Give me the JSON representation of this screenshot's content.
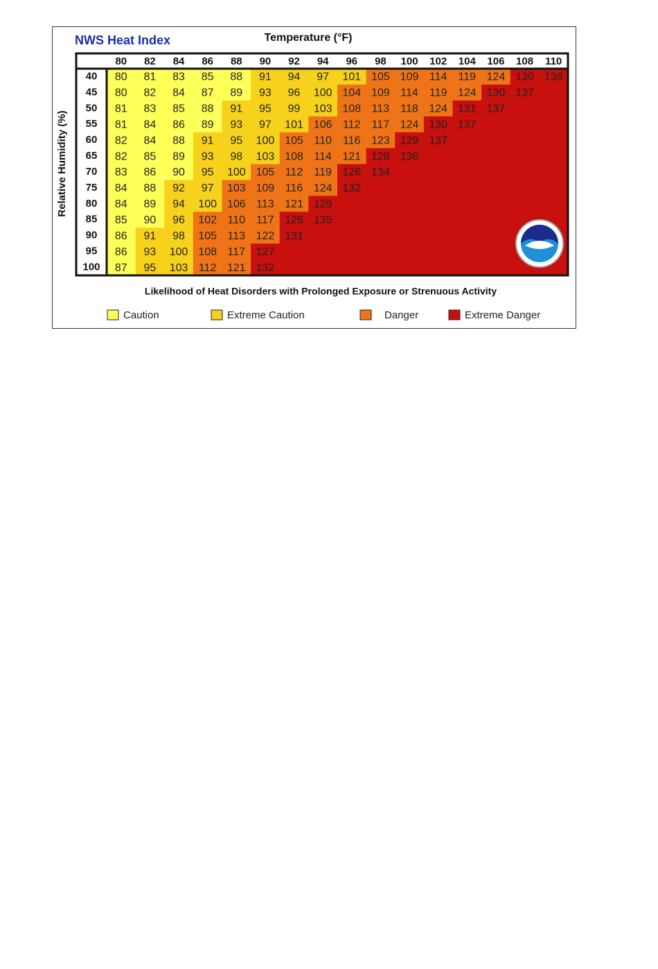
{
  "header": {
    "title": "NWS Heat Index",
    "x_title": "Temperature (°F)",
    "y_title": "Relative Humidity (%)"
  },
  "table": {
    "temperatures": [
      80,
      82,
      84,
      86,
      88,
      90,
      92,
      94,
      96,
      98,
      100,
      102,
      104,
      106,
      108,
      110
    ],
    "humidity": [
      40,
      45,
      50,
      55,
      60,
      65,
      70,
      75,
      80,
      85,
      90,
      95,
      100
    ],
    "rows": [
      [
        80,
        81,
        83,
        85,
        88,
        91,
        94,
        97,
        101,
        105,
        109,
        114,
        119,
        124,
        130,
        136
      ],
      [
        80,
        82,
        84,
        87,
        89,
        93,
        96,
        100,
        104,
        109,
        114,
        119,
        124,
        130,
        137,
        null
      ],
      [
        81,
        83,
        85,
        88,
        91,
        95,
        99,
        103,
        108,
        113,
        118,
        124,
        131,
        137,
        null,
        null
      ],
      [
        81,
        84,
        86,
        89,
        93,
        97,
        101,
        106,
        112,
        117,
        124,
        130,
        137,
        null,
        null,
        null
      ],
      [
        82,
        84,
        88,
        91,
        95,
        100,
        105,
        110,
        116,
        123,
        129,
        137,
        null,
        null,
        null,
        null
      ],
      [
        82,
        85,
        89,
        93,
        98,
        103,
        108,
        114,
        121,
        128,
        136,
        null,
        null,
        null,
        null,
        null
      ],
      [
        83,
        86,
        90,
        95,
        100,
        105,
        112,
        119,
        126,
        134,
        null,
        null,
        null,
        null,
        null,
        null
      ],
      [
        84,
        88,
        92,
        97,
        103,
        109,
        116,
        124,
        132,
        null,
        null,
        null,
        null,
        null,
        null,
        null
      ],
      [
        84,
        89,
        94,
        100,
        106,
        113,
        121,
        129,
        null,
        null,
        null,
        null,
        null,
        null,
        null,
        null
      ],
      [
        85,
        90,
        96,
        102,
        110,
        117,
        126,
        135,
        null,
        null,
        null,
        null,
        null,
        null,
        null,
        null
      ],
      [
        86,
        91,
        98,
        105,
        113,
        122,
        131,
        null,
        null,
        null,
        null,
        null,
        null,
        null,
        null,
        null
      ],
      [
        86,
        93,
        100,
        108,
        117,
        127,
        null,
        null,
        null,
        null,
        null,
        null,
        null,
        null,
        null,
        null
      ],
      [
        87,
        95,
        103,
        112,
        121,
        132,
        null,
        null,
        null,
        null,
        null,
        null,
        null,
        null,
        null,
        null
      ]
    ],
    "levels": [
      [
        0,
        0,
        0,
        0,
        0,
        1,
        1,
        1,
        1,
        2,
        2,
        2,
        2,
        2,
        3,
        3
      ],
      [
        0,
        0,
        0,
        0,
        0,
        1,
        1,
        1,
        2,
        2,
        2,
        2,
        2,
        3,
        3,
        3
      ],
      [
        0,
        0,
        0,
        0,
        1,
        1,
        1,
        1,
        2,
        2,
        2,
        2,
        3,
        3,
        3,
        3
      ],
      [
        0,
        0,
        0,
        0,
        1,
        1,
        1,
        2,
        2,
        2,
        2,
        3,
        3,
        3,
        3,
        3
      ],
      [
        0,
        0,
        0,
        1,
        1,
        1,
        2,
        2,
        2,
        2,
        3,
        3,
        3,
        3,
        3,
        3
      ],
      [
        0,
        0,
        0,
        1,
        1,
        1,
        2,
        2,
        2,
        3,
        3,
        3,
        3,
        3,
        3,
        3
      ],
      [
        0,
        0,
        0,
        1,
        1,
        2,
        2,
        2,
        3,
        3,
        3,
        3,
        3,
        3,
        3,
        3
      ],
      [
        0,
        0,
        1,
        1,
        2,
        2,
        2,
        2,
        3,
        3,
        3,
        3,
        3,
        3,
        3,
        3
      ],
      [
        0,
        0,
        1,
        1,
        2,
        2,
        2,
        3,
        3,
        3,
        3,
        3,
        3,
        3,
        3,
        3
      ],
      [
        0,
        0,
        1,
        2,
        2,
        2,
        3,
        3,
        3,
        3,
        3,
        3,
        3,
        3,
        3,
        3
      ],
      [
        0,
        1,
        1,
        2,
        2,
        2,
        3,
        3,
        3,
        3,
        3,
        3,
        3,
        3,
        3,
        3
      ],
      [
        0,
        1,
        1,
        2,
        2,
        3,
        3,
        3,
        3,
        3,
        3,
        3,
        3,
        3,
        3,
        3
      ],
      [
        0,
        1,
        1,
        2,
        2,
        3,
        3,
        3,
        3,
        3,
        3,
        3,
        3,
        3,
        3,
        3
      ]
    ]
  },
  "footer": {
    "caption": "Likelihood of Heat Disorders with Prolonged Exposure or Strenuous Activity"
  },
  "legend": {
    "items": [
      {
        "label": "Caution",
        "color": "#ffff5a"
      },
      {
        "label": "Extreme Caution",
        "color": "#f7d21c"
      },
      {
        "label": "Danger",
        "color": "#ef7417"
      },
      {
        "label": "Extreme Danger",
        "color": "#c8100e"
      }
    ]
  }
}
